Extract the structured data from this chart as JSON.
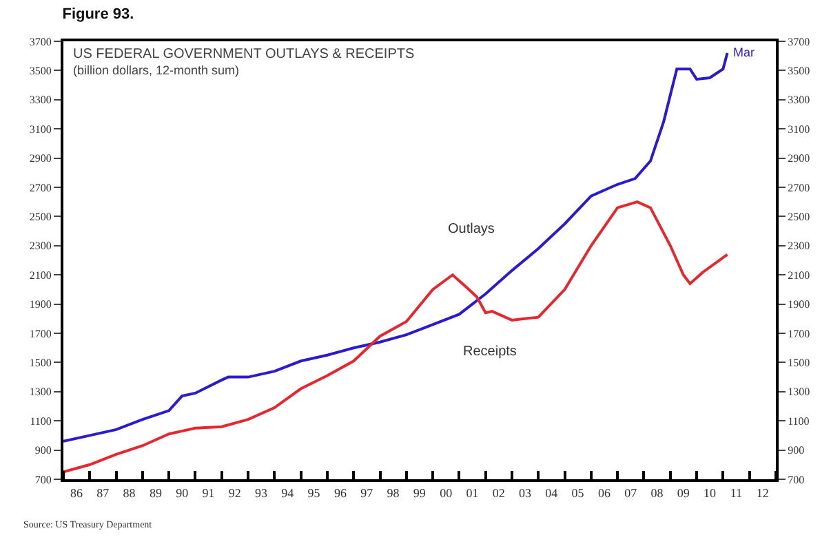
{
  "chart_data": {
    "type": "line",
    "title": "Figure 93.",
    "subtitle": "US FEDERAL GOVERNMENT OUTLAYS & RECEIPTS",
    "annotations": [
      "(billion dollars, 12-month sum)",
      {
        "text": "Mar",
        "x": "2011-03",
        "y": 3620
      },
      "Source: US Treasury Department"
    ],
    "series": [
      {
        "name": "Outlays",
        "color": "#2a1ad0",
        "x": [
          "1986-01",
          "1987-01",
          "1988-01",
          "1989-01",
          "1990-01",
          "1990-07",
          "1991-01",
          "1992-01",
          "1992-04",
          "1993-01",
          "1994-01",
          "1995-01",
          "1996-01",
          "1997-01",
          "1998-01",
          "1999-01",
          "2000-01",
          "2001-01",
          "2002-01",
          "2003-01",
          "2004-01",
          "2005-01",
          "2006-01",
          "2007-01",
          "2007-09",
          "2008-04",
          "2008-10",
          "2009-04",
          "2009-10",
          "2010-01",
          "2010-07",
          "2011-01",
          "2011-03"
        ],
        "values": [
          960,
          1000,
          1040,
          1110,
          1170,
          1270,
          1290,
          1380,
          1400,
          1400,
          1440,
          1510,
          1550,
          1600,
          1640,
          1690,
          1760,
          1830,
          1970,
          2130,
          2280,
          2450,
          2640,
          2720,
          2760,
          2880,
          3150,
          3510,
          3510,
          3440,
          3450,
          3510,
          3620
        ]
      },
      {
        "name": "Receipts",
        "color": "#e8262e",
        "x": [
          "1986-01",
          "1987-01",
          "1988-01",
          "1989-01",
          "1990-01",
          "1991-01",
          "1992-01",
          "1993-01",
          "1994-01",
          "1995-01",
          "1996-01",
          "1997-01",
          "1998-01",
          "1999-01",
          "2000-01",
          "2000-10",
          "2001-04",
          "2001-09",
          "2002-01",
          "2002-04",
          "2003-01",
          "2004-01",
          "2005-01",
          "2006-01",
          "2007-01",
          "2007-10",
          "2008-04",
          "2009-01",
          "2009-07",
          "2009-10",
          "2010-04",
          "2011-03"
        ],
        "values": [
          750,
          800,
          870,
          930,
          1010,
          1050,
          1060,
          1110,
          1190,
          1320,
          1410,
          1510,
          1680,
          1780,
          2000,
          2100,
          2020,
          1950,
          1840,
          1850,
          1790,
          1810,
          2000,
          2300,
          2560,
          2600,
          2560,
          2300,
          2100,
          2040,
          2120,
          2240
        ]
      }
    ],
    "xlim": [
      "1986-01",
      "2013-01"
    ],
    "xticks": [
      {
        "value": "1986-07",
        "label": "86"
      },
      {
        "value": "1987-07",
        "label": "87"
      },
      {
        "value": "1988-07",
        "label": "88"
      },
      {
        "value": "1989-07",
        "label": "89"
      },
      {
        "value": "1990-07",
        "label": "90"
      },
      {
        "value": "1991-07",
        "label": "91"
      },
      {
        "value": "1992-07",
        "label": "92"
      },
      {
        "value": "1993-07",
        "label": "93"
      },
      {
        "value": "1994-07",
        "label": "94"
      },
      {
        "value": "1995-07",
        "label": "95"
      },
      {
        "value": "1996-07",
        "label": "96"
      },
      {
        "value": "1997-07",
        "label": "97"
      },
      {
        "value": "1998-07",
        "label": "98"
      },
      {
        "value": "1999-07",
        "label": "99"
      },
      {
        "value": "2000-07",
        "label": "00"
      },
      {
        "value": "2001-07",
        "label": "01"
      },
      {
        "value": "2002-07",
        "label": "02"
      },
      {
        "value": "2003-07",
        "label": "03"
      },
      {
        "value": "2004-07",
        "label": "04"
      },
      {
        "value": "2005-07",
        "label": "05"
      },
      {
        "value": "2006-07",
        "label": "06"
      },
      {
        "value": "2007-07",
        "label": "07"
      },
      {
        "value": "2008-07",
        "label": "08"
      },
      {
        "value": "2009-07",
        "label": "09"
      },
      {
        "value": "2010-07",
        "label": "10"
      },
      {
        "value": "2011-07",
        "label": "11"
      },
      {
        "value": "2012-07",
        "label": "12"
      }
    ],
    "ylim": [
      700,
      3700
    ],
    "yticks": [
      700,
      900,
      1100,
      1300,
      1500,
      1700,
      1900,
      2100,
      2300,
      2500,
      2700,
      2900,
      3100,
      3300,
      3500,
      3700
    ],
    "y2lim": [
      700,
      3700
    ],
    "y2ticks": [
      700,
      900,
      1100,
      1300,
      1500,
      1700,
      1900,
      2100,
      2300,
      2500,
      2700,
      2900,
      3100,
      3300,
      3500,
      3700
    ],
    "legend": false,
    "line_style": "solid",
    "marker": "none"
  }
}
